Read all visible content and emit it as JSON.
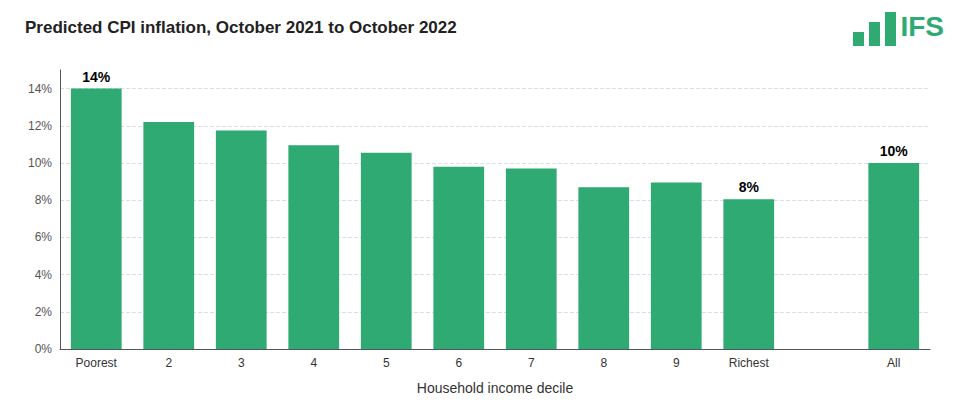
{
  "chart_data": {
    "type": "bar",
    "title": "Predicted CPI inflation, October 2021 to October 2022",
    "xlabel": "Household income decile",
    "categories": [
      "Poorest",
      "2",
      "3",
      "4",
      "5",
      "6",
      "7",
      "8",
      "9",
      "Richest",
      null,
      "All"
    ],
    "values": [
      14.0,
      12.2,
      11.75,
      10.95,
      10.55,
      9.8,
      9.7,
      8.7,
      8.95,
      8.05,
      null,
      10.0
    ],
    "color": "#2eaa72",
    "ylim": [
      0,
      15
    ],
    "yticks": [
      {
        "value": 0,
        "label": "0%"
      },
      {
        "value": 2,
        "label": "2%"
      },
      {
        "value": 4,
        "label": "4%"
      },
      {
        "value": 6,
        "label": "6%"
      },
      {
        "value": 8,
        "label": "8%"
      },
      {
        "value": 10,
        "label": "10%"
      },
      {
        "value": 12,
        "label": "12%"
      },
      {
        "value": 14,
        "label": "14%"
      }
    ],
    "grid": true,
    "annotations": [
      {
        "category": "Poorest",
        "text": "14%"
      },
      {
        "category": "Richest",
        "text": "8%"
      },
      {
        "category": "All",
        "text": "10%"
      }
    ],
    "logo": "IFS"
  }
}
